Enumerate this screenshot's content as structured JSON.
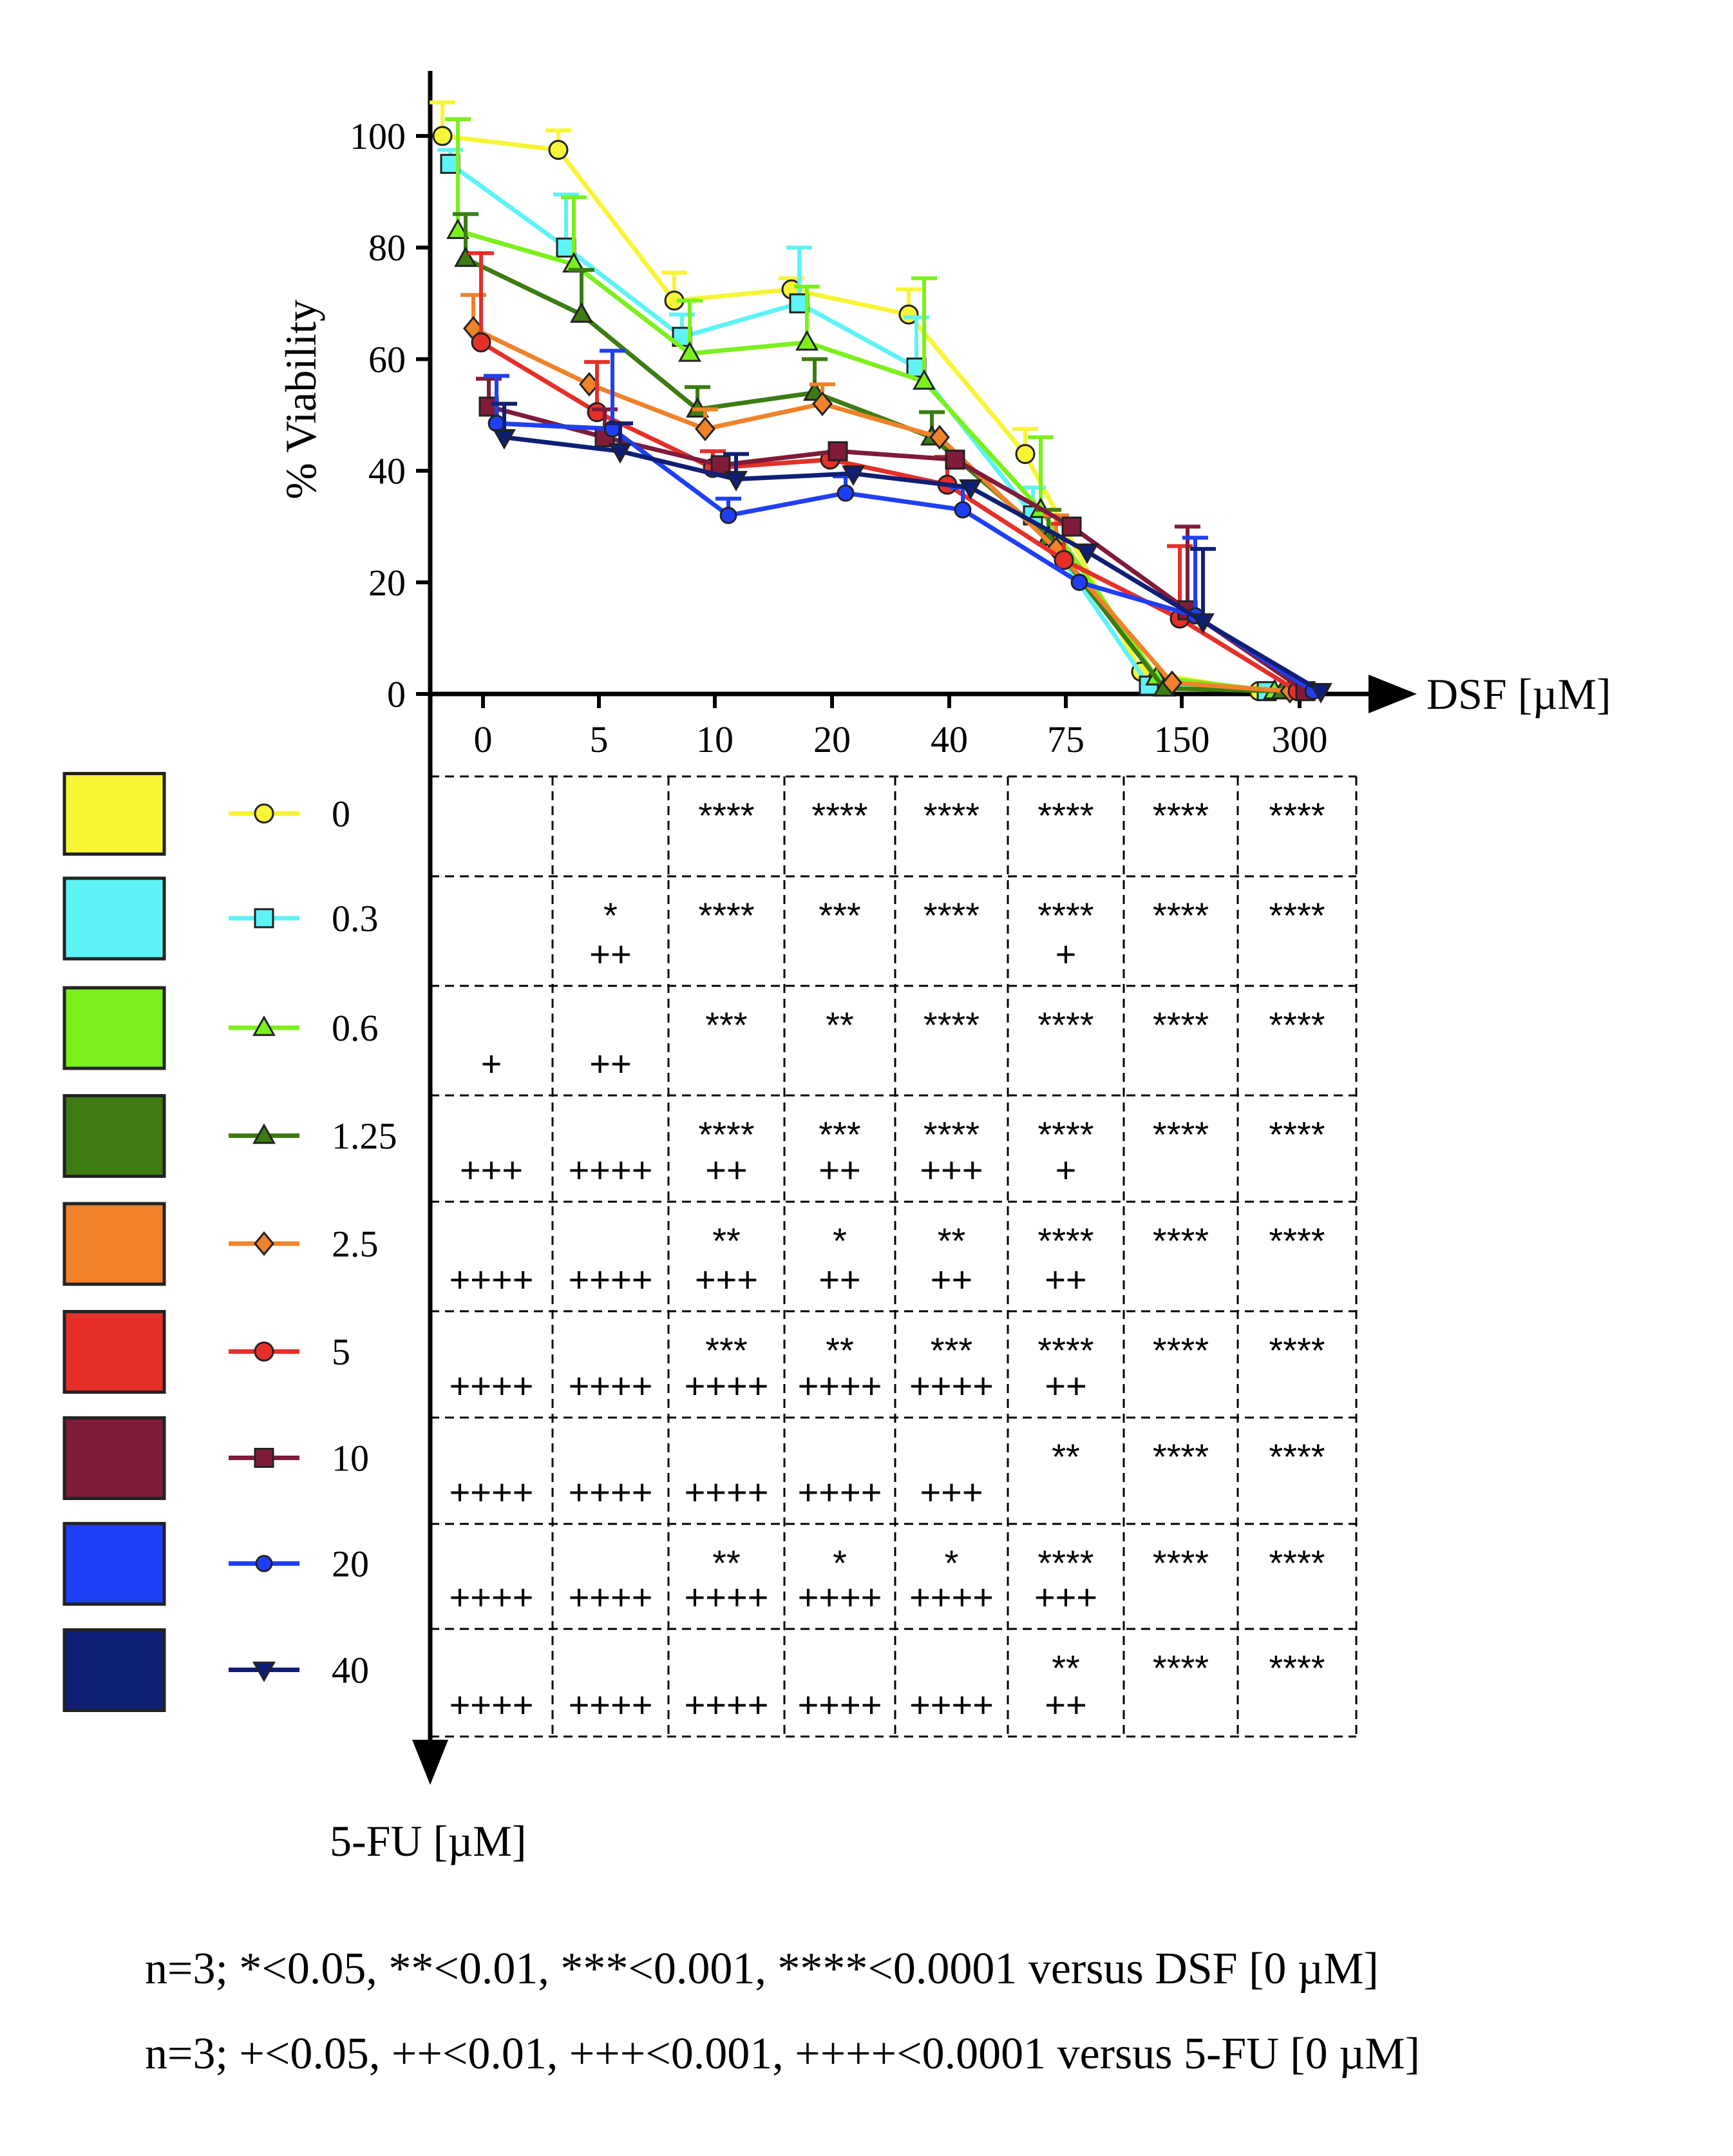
{
  "chart_data": {
    "type": "line",
    "ylabel": "% Viability",
    "xlabel": "DSF [µM]",
    "series_axis_label": "5-FU [µM]",
    "categories": [
      "0",
      "5",
      "10",
      "20",
      "40",
      "75",
      "150",
      "300"
    ],
    "y_ticks": [
      "0",
      "20",
      "40",
      "60",
      "80",
      "100"
    ],
    "ylim": [
      0,
      110
    ],
    "series": [
      {
        "name": "0",
        "color": "#f7f535",
        "marker": "circle",
        "values": [
          100,
          97.5,
          70.5,
          72.5,
          68,
          43,
          4,
          0.5
        ],
        "errors": [
          6,
          3.5,
          5,
          2,
          4.5,
          4.5,
          0,
          0
        ]
      },
      {
        "name": "0.3",
        "color": "#5ef3f6",
        "marker": "square",
        "values": [
          95,
          80,
          64,
          70,
          58.5,
          32,
          1.5,
          0.5
        ],
        "errors": [
          2.5,
          9.5,
          4,
          10,
          9,
          5,
          0,
          0
        ]
      },
      {
        "name": "0.6",
        "color": "#7cf01c",
        "marker": "triangle",
        "values": [
          83,
          77,
          61,
          63,
          56,
          33,
          3,
          0.5
        ],
        "errors": [
          20,
          12,
          9.5,
          10,
          18.5,
          13,
          0,
          0
        ]
      },
      {
        "name": "1.25",
        "color": "#3d7c12",
        "marker": "triangle",
        "values": [
          78,
          68,
          51,
          54,
          46,
          28,
          1,
          0.5
        ],
        "errors": [
          8,
          8,
          4,
          6,
          4.5,
          5,
          0,
          0
        ]
      },
      {
        "name": "2.5",
        "color": "#f0822a",
        "marker": "diamond",
        "values": [
          65.5,
          55.5,
          47.5,
          52,
          46,
          26,
          2,
          0.5
        ],
        "errors": [
          6,
          0,
          3.5,
          3.5,
          0,
          6,
          0,
          0
        ]
      },
      {
        "name": "5",
        "color": "#e5302a",
        "marker": "circle",
        "values": [
          63,
          50.5,
          40.5,
          42,
          37.5,
          24,
          13.5,
          0.5
        ],
        "errors": [
          16,
          9,
          3,
          0,
          5,
          6.5,
          13,
          0
        ]
      },
      {
        "name": "10",
        "color": "#801b3a",
        "marker": "square",
        "values": [
          51.5,
          46,
          41,
          43.5,
          42,
          30,
          15,
          0.5
        ],
        "errors": [
          5,
          5,
          0,
          0,
          0,
          0,
          15,
          0
        ]
      },
      {
        "name": "20",
        "color": "#1f3ff7",
        "marker": "circle-small",
        "values": [
          48.5,
          47.5,
          32,
          36,
          33,
          20,
          14,
          0.5
        ],
        "errors": [
          8.5,
          14,
          3,
          3,
          4,
          0,
          14,
          0
        ]
      },
      {
        "name": "40",
        "color": "#0f1f75",
        "marker": "triangle-down",
        "values": [
          46,
          43.5,
          38.5,
          39.5,
          37,
          25.5,
          13,
          0.5
        ],
        "errors": [
          6,
          5,
          4.5,
          0,
          0,
          0,
          13,
          0
        ]
      }
    ],
    "significance_table": {
      "rows": [
        {
          "label": "0",
          "star": [
            "",
            "",
            "****",
            "****",
            "****",
            "****",
            "****",
            "****"
          ],
          "plus": [
            "",
            "",
            "",
            "",
            "",
            "",
            "",
            ""
          ]
        },
        {
          "label": "0.3",
          "star": [
            "",
            "*",
            "****",
            "***",
            "****",
            "****",
            "****",
            "****"
          ],
          "plus": [
            "",
            "++",
            "",
            "",
            "",
            "+",
            "",
            ""
          ]
        },
        {
          "label": "0.6",
          "star": [
            "",
            "",
            "***",
            "**",
            "****",
            "****",
            "****",
            "****"
          ],
          "plus": [
            "+",
            "++",
            "",
            "",
            "",
            "",
            "",
            ""
          ]
        },
        {
          "label": "1.25",
          "star": [
            "",
            "",
            "****",
            "***",
            "****",
            "****",
            "****",
            "****"
          ],
          "plus": [
            "+++",
            "++++",
            "++",
            "++",
            "+++",
            "+",
            "",
            ""
          ]
        },
        {
          "label": "2.5",
          "star": [
            "",
            "",
            "**",
            "*",
            "**",
            "****",
            "****",
            "****"
          ],
          "plus": [
            "++++",
            "++++",
            "+++",
            "++",
            "++",
            "++",
            "",
            ""
          ]
        },
        {
          "label": "5",
          "star": [
            "",
            "",
            "***",
            "**",
            "***",
            "****",
            "****",
            "****"
          ],
          "plus": [
            "++++",
            "++++",
            "++++",
            "++++",
            "++++",
            "++",
            "",
            ""
          ]
        },
        {
          "label": "10",
          "star": [
            "",
            "",
            "",
            "",
            "",
            "**",
            "****",
            "****"
          ],
          "plus": [
            "++++",
            "++++",
            "++++",
            "++++",
            "+++",
            "",
            "",
            ""
          ]
        },
        {
          "label": "20",
          "star": [
            "",
            "",
            "**",
            "*",
            "*",
            "****",
            "****",
            "****"
          ],
          "plus": [
            "++++",
            "++++",
            "++++",
            "++++",
            "++++",
            "+++",
            "",
            ""
          ]
        },
        {
          "label": "40",
          "star": [
            "",
            "",
            "",
            "",
            "",
            "**",
            "****",
            "****"
          ],
          "plus": [
            "++++",
            "++++",
            "++++",
            "++++",
            "++++",
            "++",
            "",
            ""
          ]
        }
      ]
    },
    "footnotes": [
      "n=3; *<0.05, **<0.01, ***<0.001, ****<0.0001 versus DSF [0 µM]",
      "n=3; +<0.05, ++<0.01, +++<0.001, ++++<0.0001 versus 5-FU [0 µM]"
    ]
  }
}
